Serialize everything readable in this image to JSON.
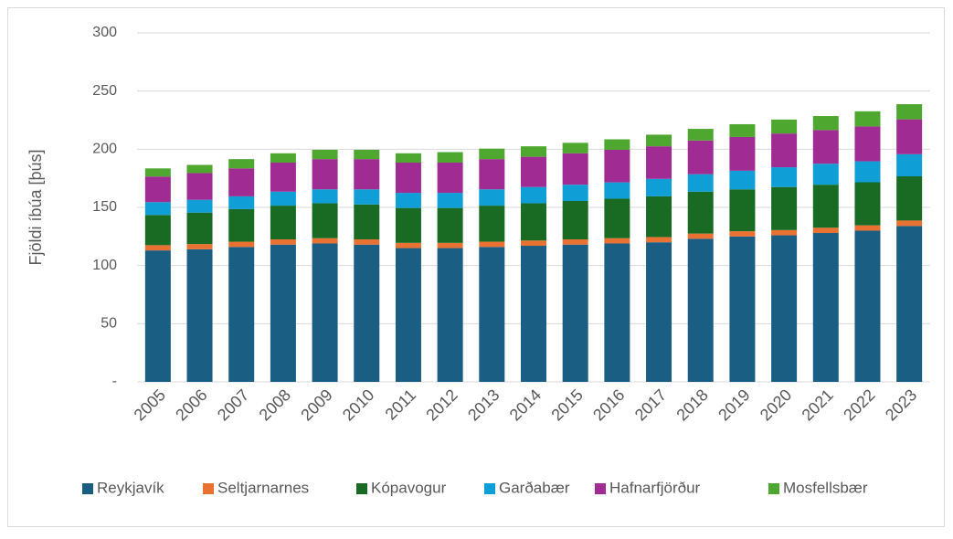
{
  "chart_data": {
    "type": "stacked_bar",
    "y_label": "Fjöldi íbúa [þús]",
    "categories": [
      "2005",
      "2006",
      "2007",
      "2008",
      "2009",
      "2010",
      "2011",
      "2012",
      "2013",
      "2014",
      "2015",
      "2016",
      "2017",
      "2018",
      "2019",
      "2020",
      "2021",
      "2022",
      "2023"
    ],
    "series": [
      {
        "name": "Reykjavík",
        "color": "#1b5e83",
        "values": [
          113,
          114,
          116,
          118,
          119,
          118,
          115,
          115,
          116,
          117,
          118,
          119,
          120,
          123,
          125,
          126,
          128,
          130,
          134
        ]
      },
      {
        "name": "Seltjarnarnes",
        "color": "#e97132",
        "values": [
          4.5,
          4.5,
          4.5,
          4.5,
          4.5,
          4.5,
          4.5,
          4.5,
          4.5,
          4.5,
          4.5,
          4.5,
          4.5,
          4.5,
          4.5,
          4.5,
          4.5,
          4.6,
          4.7
        ]
      },
      {
        "name": "Kópavogur",
        "color": "#196b24",
        "values": [
          26,
          27,
          28,
          29,
          30,
          30,
          30,
          30,
          31,
          32,
          33,
          34,
          35,
          36,
          36,
          37,
          37,
          37,
          38
        ]
      },
      {
        "name": "Garðabær",
        "color": "#0f9ed5",
        "values": [
          11,
          11,
          11,
          12,
          12,
          13,
          13,
          13,
          14,
          14,
          14,
          14,
          15,
          15,
          16,
          17,
          18,
          18,
          19
        ]
      },
      {
        "name": "Hafnarfjörður",
        "color": "#a02b93",
        "values": [
          22,
          23,
          24,
          25,
          26,
          26,
          26,
          26,
          26,
          26,
          27,
          28,
          28,
          29,
          29,
          29,
          29,
          30,
          30
        ]
      },
      {
        "name": "Mosfellsbær",
        "color": "#4ea72e",
        "values": [
          7,
          7,
          8,
          8,
          8,
          8,
          8,
          9,
          9,
          9,
          9,
          9,
          10,
          10,
          11,
          12,
          12,
          13,
          13
        ]
      }
    ],
    "ylim": [
      0,
      300
    ],
    "yticks": [
      {
        "value": 0,
        "label": "-"
      },
      50,
      100,
      150,
      200,
      250,
      300
    ],
    "grid": true,
    "legend": "bottom"
  }
}
